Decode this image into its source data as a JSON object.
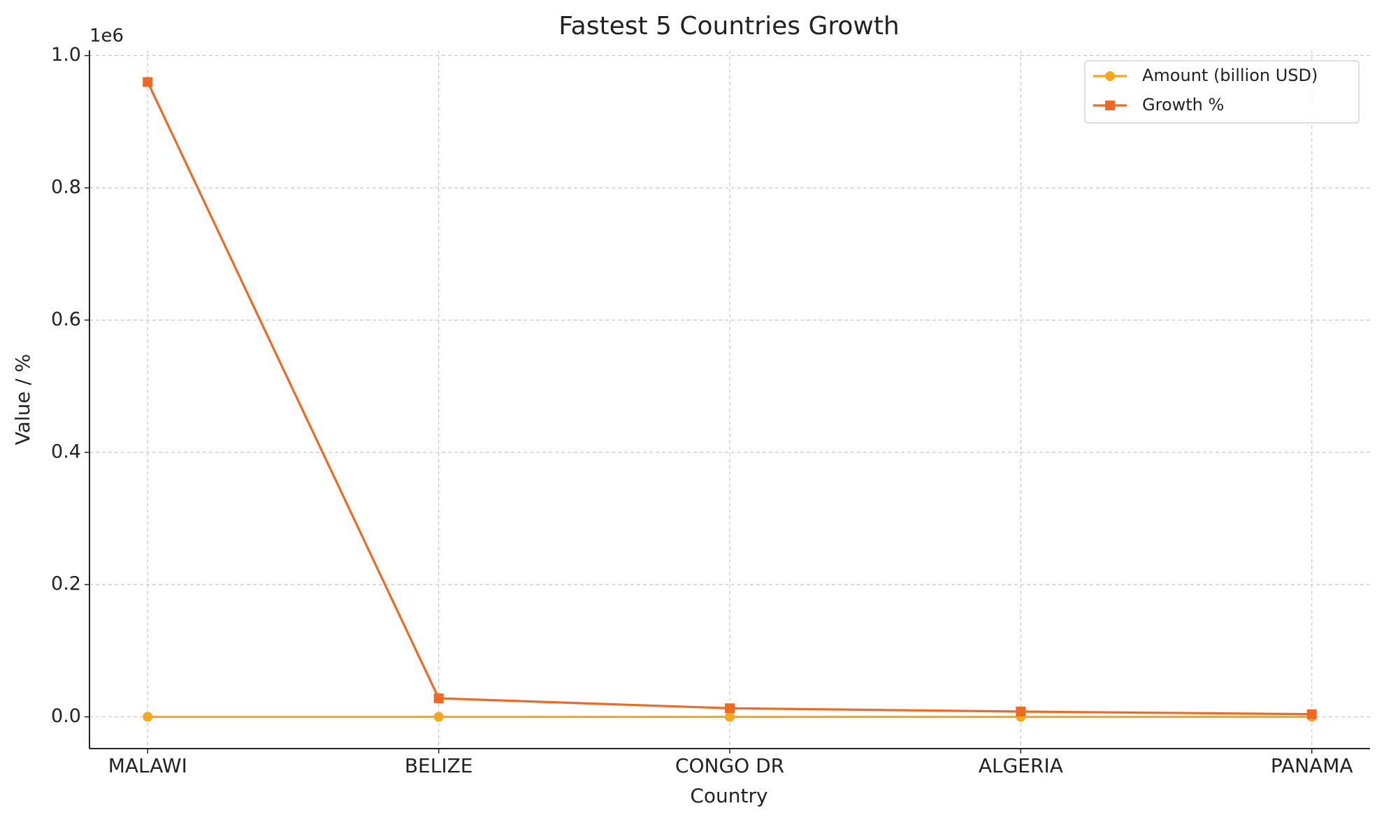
{
  "chart_data": {
    "type": "line",
    "title": "Fastest 5 Countries Growth",
    "x_label": "Country",
    "y_label": "Value / %",
    "y_offset_label": "1e6",
    "categories": [
      "MALAWI",
      "BELIZE",
      "CONGO DR",
      "ALGERIA",
      "PANAMA"
    ],
    "series": [
      {
        "name": "Amount (billion USD)",
        "color": "#f5a81c",
        "marker": "circle",
        "values": [
          0,
          0,
          0,
          0,
          0
        ]
      },
      {
        "name": "Growth %",
        "color": "#ee6a24",
        "marker": "square",
        "values": [
          960000,
          28000,
          13000,
          8000,
          4000
        ]
      }
    ],
    "ylim": [
      -48000,
      1008000
    ],
    "yticks": [
      {
        "value": 0,
        "label": "0.0"
      },
      {
        "value": 200000,
        "label": "0.2"
      },
      {
        "value": 400000,
        "label": "0.4"
      },
      {
        "value": 600000,
        "label": "0.6"
      },
      {
        "value": 800000,
        "label": "0.8"
      },
      {
        "value": 1000000,
        "label": "1.0"
      }
    ],
    "grid": true,
    "legend": "upper right"
  }
}
